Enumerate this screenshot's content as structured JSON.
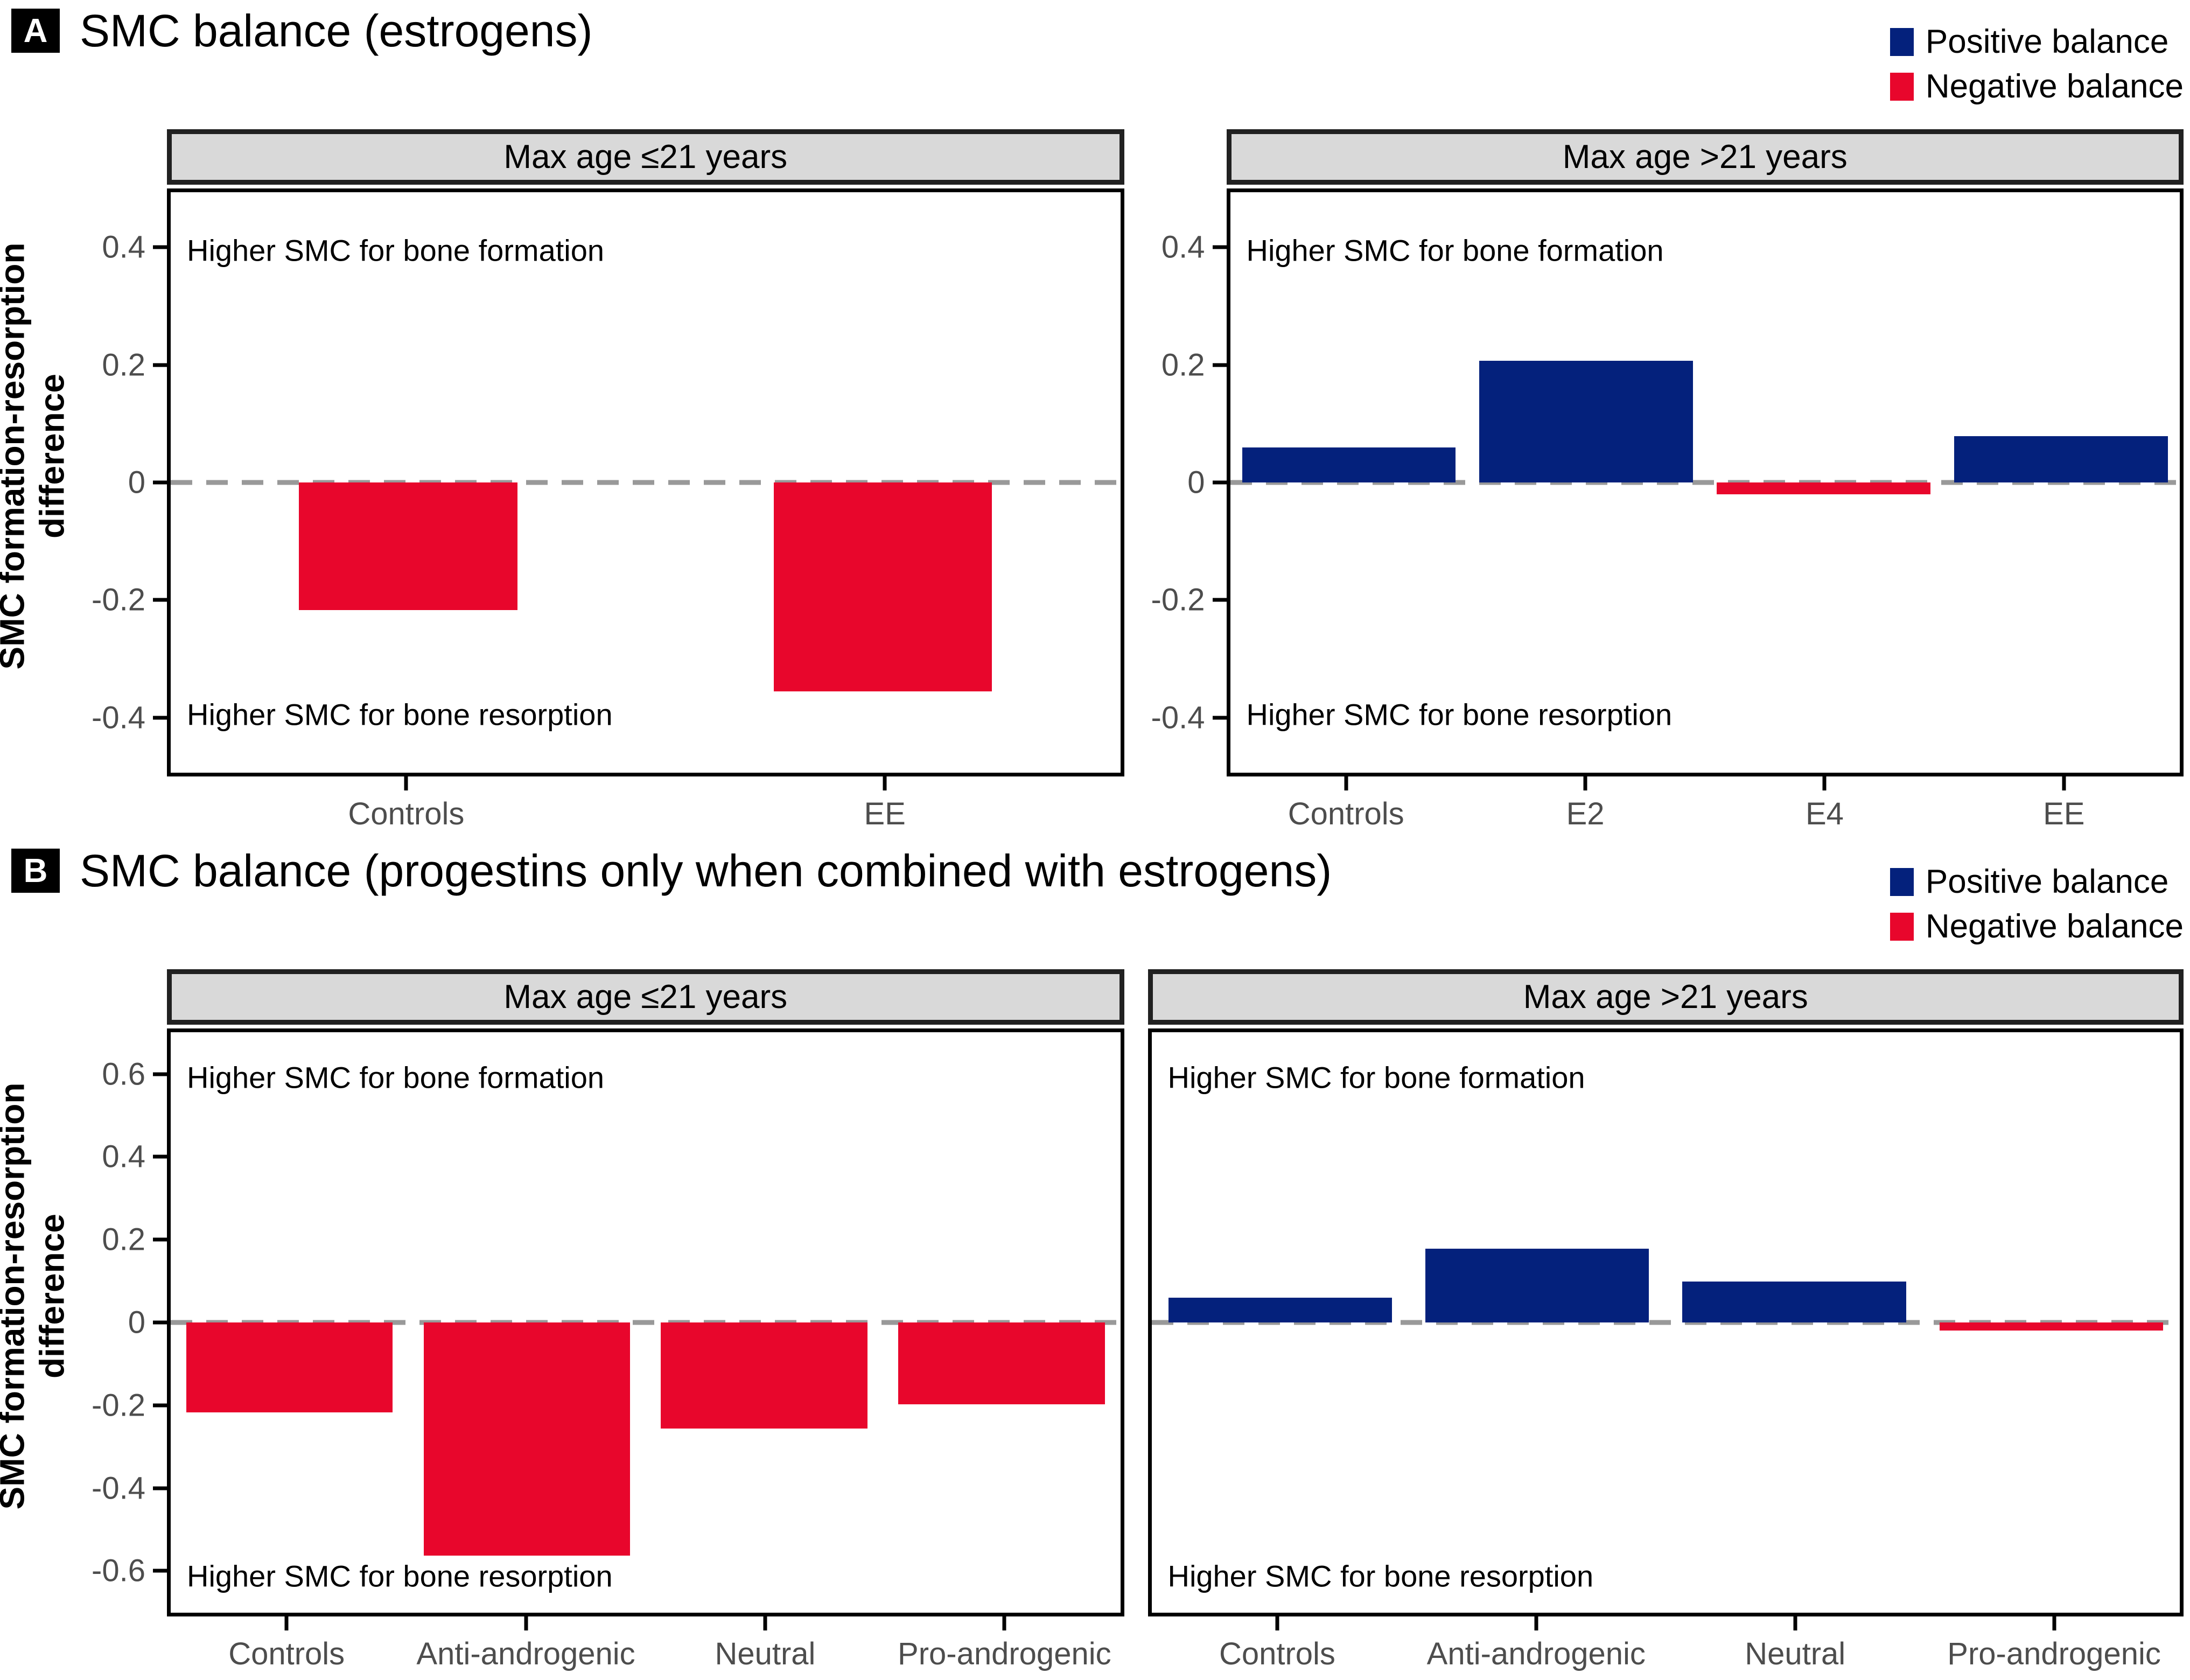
{
  "colors": {
    "positive_balance": "#04217C",
    "negative_balance": "#E8062C",
    "strip_fill": "#D9D9D9",
    "strip_border": "#212121",
    "plot_border": "#000000",
    "zero_line": "#999999",
    "axis_text": "#4D4D4D",
    "annotation_text": "#000000"
  },
  "legend": {
    "items": [
      {
        "label": "Positive balance",
        "color": "#04217C"
      },
      {
        "label": "Negative balance",
        "color": "#E8062C"
      }
    ],
    "position": "top-right"
  },
  "chart_data": [
    {
      "type": "bar",
      "panel_label": "A",
      "title": "SMC balance (estrogens)",
      "ylabel": [
        "SMC formation-resorption",
        "difference"
      ],
      "zero_line_style": "dashed",
      "legend_entries": [
        "Positive balance",
        "Negative balance"
      ],
      "facets": [
        {
          "strip": "Max age ≤21 years",
          "categories": [
            "Controls",
            "EE"
          ],
          "values": [
            -0.22,
            -0.36
          ],
          "ylim": [
            -0.5,
            0.5
          ],
          "yticks": [
            "0.4",
            "0.2",
            "0",
            "-0.2",
            "-0.4"
          ],
          "ytick_values": [
            0.4,
            0.2,
            0,
            -0.2,
            -0.4
          ],
          "show_y_axis": true,
          "bar_width_frac": 0.46,
          "annotation_top": {
            "text": "Higher SMC for bone formation",
            "value": 0.4
          },
          "annotation_bottom": {
            "text": "Higher SMC for bone resorption",
            "value": -0.4
          }
        },
        {
          "strip": "Max age >21 years",
          "categories": [
            "Controls",
            "E2",
            "E4",
            "EE"
          ],
          "values": [
            0.06,
            0.21,
            -0.02,
            0.08
          ],
          "ylim": [
            -0.5,
            0.5
          ],
          "yticks": [
            "0.4",
            "0.2",
            "0",
            "-0.2",
            "-0.4"
          ],
          "ytick_values": [
            0.4,
            0.2,
            0,
            -0.2,
            -0.4
          ],
          "show_y_axis": true,
          "bar_width_frac": 0.9,
          "annotation_top": {
            "text": "Higher SMC for bone formation",
            "value": 0.4
          },
          "annotation_bottom": {
            "text": "Higher SMC for bone resorption",
            "value": -0.4
          }
        }
      ]
    },
    {
      "type": "bar",
      "panel_label": "B",
      "title": "SMC balance (progestins only when combined with estrogens)",
      "ylabel": [
        "SMC formation-resorption",
        "difference"
      ],
      "zero_line_style": "dashed",
      "legend_entries": [
        "Positive balance",
        "Negative balance"
      ],
      "facets": [
        {
          "strip": "Max age ≤21 years",
          "categories": [
            "Controls",
            "Anti-androgenic",
            "Neutral",
            "Pro-androgenic"
          ],
          "values": [
            -0.22,
            -0.57,
            -0.26,
            -0.2
          ],
          "ylim": [
            -0.71,
            0.71
          ],
          "yticks": [
            "0.6",
            "0.4",
            "0.2",
            "0",
            "-0.2",
            "-0.4",
            "-0.6"
          ],
          "ytick_values": [
            0.6,
            0.4,
            0.2,
            0,
            -0.2,
            -0.4,
            -0.6
          ],
          "show_y_axis": true,
          "bar_width_frac": 0.87,
          "annotation_top": {
            "text": "Higher SMC for bone formation",
            "value": 0.6
          },
          "annotation_bottom": {
            "text": "Higher SMC for bone resorption",
            "value": -0.62
          }
        },
        {
          "strip": "Max age >21 years",
          "categories": [
            "Controls",
            "Anti-androgenic",
            "Neutral",
            "Pro-androgenic"
          ],
          "values": [
            0.06,
            0.18,
            0.1,
            -0.02
          ],
          "ylim": [
            -0.71,
            0.71
          ],
          "yticks": [],
          "ytick_values": [],
          "show_y_axis": false,
          "bar_width_frac": 0.87,
          "annotation_top": {
            "text": "Higher SMC for bone formation",
            "value": 0.6
          },
          "annotation_bottom": {
            "text": "Higher SMC for bone resorption",
            "value": -0.62
          }
        }
      ]
    }
  ]
}
